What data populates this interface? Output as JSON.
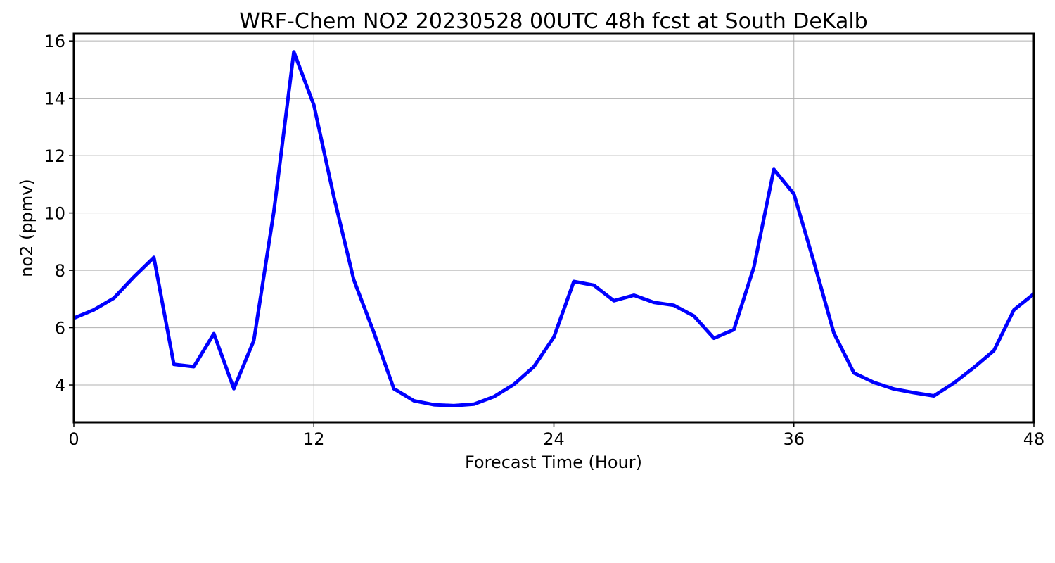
{
  "chart_data": {
    "type": "line",
    "title": "WRF-Chem NO2  20230528 00UTC 48h fcst at South DeKalb",
    "xlabel": "Forecast Time (Hour)",
    "ylabel": "no2  (ppmv)",
    "xlim": [
      0,
      48
    ],
    "ylim": [
      2.7,
      16.25
    ],
    "xticks": [
      0,
      12,
      24,
      36,
      48
    ],
    "yticks": [
      4,
      6,
      8,
      10,
      12,
      14,
      16
    ],
    "grid": true,
    "color": "#0000ff",
    "series": [
      {
        "x": [
          0,
          1,
          2,
          3,
          4,
          5,
          6,
          7,
          8,
          9,
          10,
          11,
          12,
          13,
          14,
          15,
          16,
          17,
          18,
          19,
          20,
          21,
          22,
          23,
          24,
          25,
          26,
          27,
          28,
          29,
          30,
          31,
          32,
          33,
          34,
          35,
          36,
          37,
          38,
          39,
          40,
          41,
          42,
          43,
          44,
          45,
          46,
          47,
          48
        ],
        "values": [
          6.33,
          6.62,
          7.03,
          7.77,
          8.45,
          4.72,
          4.64,
          5.79,
          3.87,
          5.55,
          10.05,
          15.62,
          13.76,
          10.56,
          7.66,
          5.83,
          3.87,
          3.45,
          3.31,
          3.28,
          3.33,
          3.59,
          4.02,
          4.64,
          5.67,
          7.61,
          7.48,
          6.94,
          7.13,
          6.88,
          6.78,
          6.41,
          5.63,
          5.93,
          8.11,
          11.52,
          10.66,
          8.29,
          5.81,
          4.42,
          4.09,
          3.86,
          3.73,
          3.62,
          4.07,
          4.61,
          5.2,
          6.62,
          7.18
        ]
      }
    ]
  }
}
